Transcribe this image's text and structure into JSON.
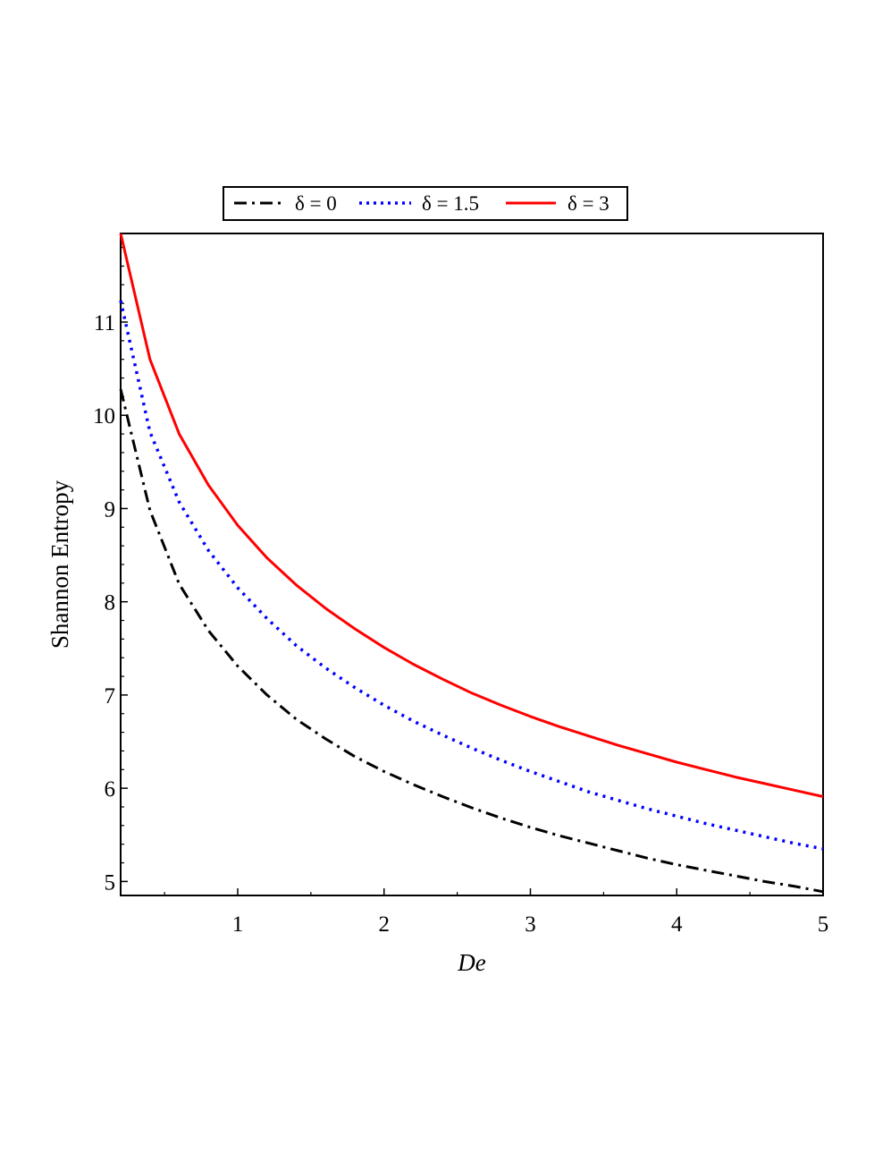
{
  "chart_data": {
    "type": "line",
    "xlabel": "De",
    "ylabel": "Shannon Entropy",
    "xlim": [
      0.2,
      5
    ],
    "ylim": [
      4.85,
      11.95
    ],
    "x_ticks": [
      1,
      2,
      3,
      4,
      5
    ],
    "x_tick_labels": [
      "1",
      "2",
      "3",
      "4",
      "5"
    ],
    "y_ticks": [
      5,
      6,
      7,
      8,
      9,
      10,
      11
    ],
    "y_tick_labels": [
      "5",
      "6",
      "7",
      "8",
      "9",
      "10",
      "11"
    ],
    "grid": false,
    "legend_position": "top",
    "series": [
      {
        "name": "δ = 0",
        "color": "#000000",
        "style": "dashdot",
        "x": [
          0.2,
          0.4,
          0.6,
          0.8,
          1.0,
          1.2,
          1.4,
          1.6,
          1.8,
          2.0,
          2.2,
          2.4,
          2.6,
          2.8,
          3.0,
          3.2,
          3.4,
          3.6,
          3.8,
          4.0,
          4.2,
          4.4,
          4.6,
          4.8,
          5.0
        ],
        "y": [
          10.28,
          8.98,
          8.19,
          7.69,
          7.31,
          7.0,
          6.74,
          6.53,
          6.34,
          6.18,
          6.04,
          5.91,
          5.79,
          5.68,
          5.58,
          5.49,
          5.41,
          5.33,
          5.25,
          5.18,
          5.12,
          5.06,
          5.0,
          4.95,
          4.89
        ]
      },
      {
        "name": "δ = 1.5",
        "color": "#0000ff",
        "style": "dotted",
        "x": [
          0.2,
          0.4,
          0.6,
          0.8,
          1.0,
          1.2,
          1.4,
          1.6,
          1.8,
          2.0,
          2.2,
          2.4,
          2.6,
          2.8,
          3.0,
          3.2,
          3.4,
          3.6,
          3.8,
          4.0,
          4.2,
          4.4,
          4.6,
          4.8,
          5.0
        ],
        "y": [
          11.23,
          9.82,
          9.07,
          8.55,
          8.15,
          7.82,
          7.53,
          7.29,
          7.08,
          6.89,
          6.72,
          6.57,
          6.43,
          6.3,
          6.18,
          6.07,
          5.96,
          5.87,
          5.78,
          5.7,
          5.62,
          5.55,
          5.48,
          5.41,
          5.35
        ]
      },
      {
        "name": "δ = 3",
        "color": "#ff0000",
        "style": "solid",
        "x": [
          0.2,
          0.4,
          0.6,
          0.8,
          1.0,
          1.2,
          1.4,
          1.6,
          1.8,
          2.0,
          2.2,
          2.4,
          2.6,
          2.8,
          3.0,
          3.2,
          3.4,
          3.6,
          3.8,
          4.0,
          4.2,
          4.4,
          4.6,
          4.8,
          5.0
        ],
        "y": [
          11.95,
          10.6,
          9.8,
          9.25,
          8.82,
          8.47,
          8.18,
          7.93,
          7.71,
          7.51,
          7.33,
          7.17,
          7.02,
          6.89,
          6.77,
          6.66,
          6.56,
          6.46,
          6.37,
          6.28,
          6.2,
          6.12,
          6.05,
          5.98,
          5.91
        ]
      }
    ]
  }
}
